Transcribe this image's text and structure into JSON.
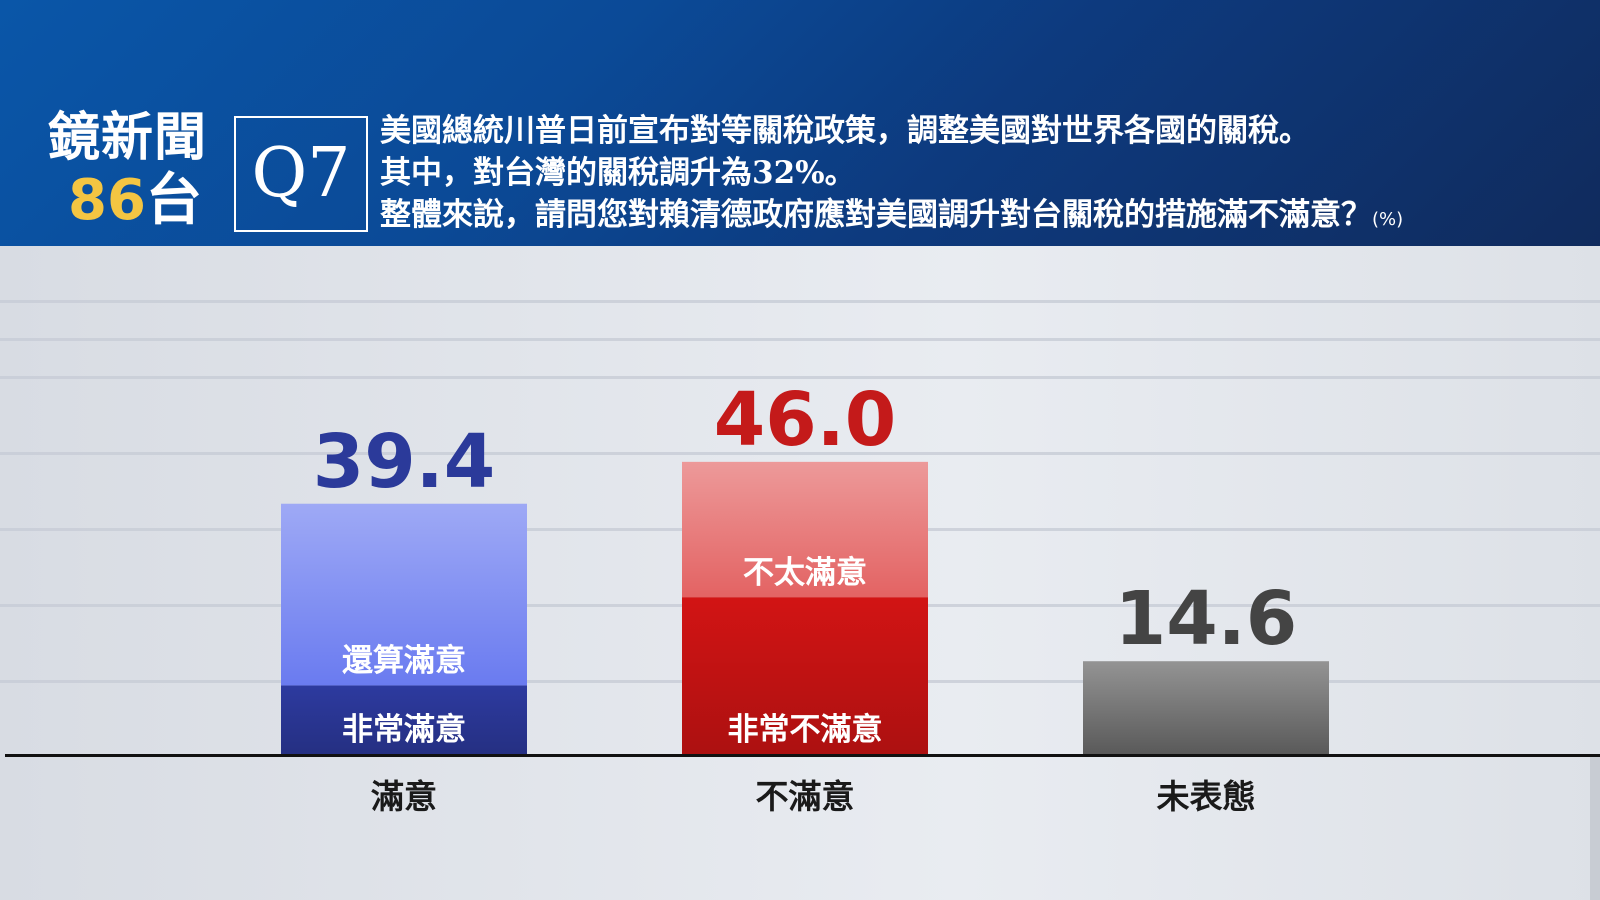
{
  "header": {
    "logo_line1": "鏡新聞",
    "logo_number": "86",
    "logo_char": "台",
    "question_id": "Q7",
    "question_line1": "美國總統川普日前宣布對等關稅政策，調整美國對世界各國的關稅。",
    "question_line2": "其中，對台灣的關稅調升為32%。",
    "question_line3": "整體來說，請問您對賴清德政府應對美國調升對台關稅的措施滿不滿意？",
    "unit": "(%)"
  },
  "colors": {
    "header_bg": "#0b4a97",
    "logo_number": "#f4c542",
    "satisfied_value": "#2b3a9a",
    "dissatisfied_value": "#c41a1a",
    "neutral_value": "#444444"
  },
  "chart_data": {
    "type": "bar",
    "unit": "(%)",
    "categories": [
      "滿意",
      "不滿意",
      "未表態"
    ],
    "values": [
      39.4,
      46.0,
      14.6
    ],
    "value_labels": [
      "39.4",
      "46.0",
      "14.6"
    ],
    "segments": [
      [
        {
          "label": "非常滿意",
          "value": 10.8,
          "color": "#2d3a9f"
        },
        {
          "label": "還算滿意",
          "value": 28.6,
          "color": "#6a7bf0"
        }
      ],
      [
        {
          "label": "非常不滿意",
          "value": 24.7,
          "color": "#d21414"
        },
        {
          "label": "不太滿意",
          "value": 21.3,
          "color": "#e36363"
        }
      ],
      [
        {
          "label": "",
          "value": 14.6,
          "color": "#5a5a5a"
        }
      ]
    ],
    "ylim": [
      0,
      54
    ],
    "grid": true
  }
}
